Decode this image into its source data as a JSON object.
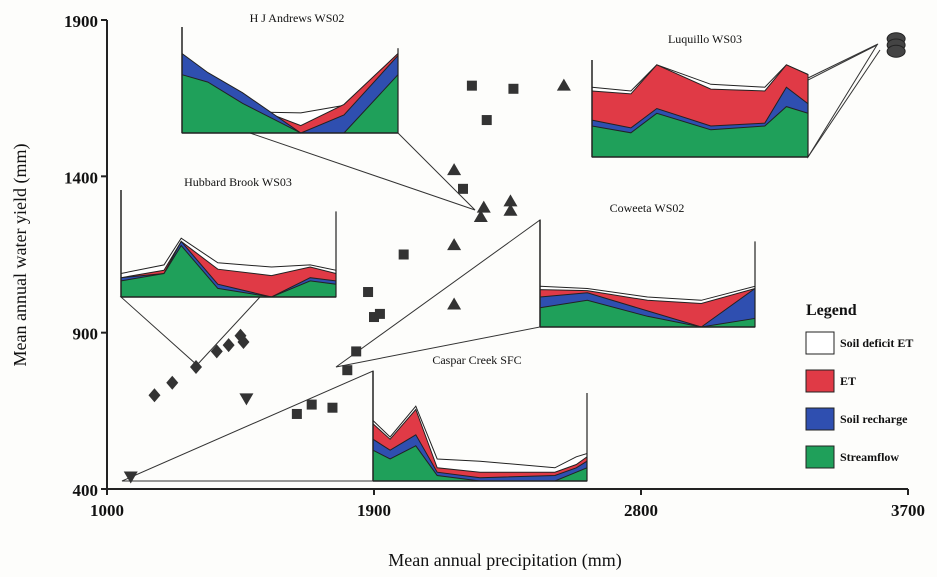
{
  "chart_data": {
    "type": "scatter",
    "xlabel": "Mean annual precipitation (mm)",
    "ylabel": "Mean annual water yield (mm)",
    "xlim": [
      1000,
      3700
    ],
    "ylim": [
      400,
      1900
    ],
    "xticks": [
      1000,
      1900,
      2800,
      3700
    ],
    "yticks": [
      400,
      900,
      1400,
      1900
    ],
    "grid": false,
    "series": [
      {
        "marker": "diamond",
        "color": "#333333",
        "points": [
          [
            1160,
            700
          ],
          [
            1220,
            740
          ],
          [
            1300,
            790
          ],
          [
            1370,
            840
          ],
          [
            1410,
            860
          ],
          [
            1450,
            890
          ],
          [
            1460,
            870
          ]
        ]
      },
      {
        "marker": "triangle-down",
        "color": "#333333",
        "points": [
          [
            1080,
            440
          ],
          [
            1470,
            690
          ]
        ]
      },
      {
        "marker": "square",
        "color": "#333333",
        "points": [
          [
            1640,
            640
          ],
          [
            1690,
            670
          ],
          [
            1760,
            660
          ],
          [
            1810,
            780
          ],
          [
            1840,
            840
          ],
          [
            1880,
            1030
          ],
          [
            1900,
            950
          ],
          [
            1920,
            960
          ],
          [
            2000,
            1150
          ],
          [
            2200,
            1360
          ],
          [
            2230,
            1690
          ],
          [
            2280,
            1580
          ],
          [
            2370,
            1680
          ]
        ]
      },
      {
        "marker": "triangle-up",
        "color": "#333333",
        "points": [
          [
            2170,
            1420
          ],
          [
            2170,
            1180
          ],
          [
            2170,
            990
          ],
          [
            2260,
            1270
          ],
          [
            2270,
            1300
          ],
          [
            2360,
            1320
          ],
          [
            2360,
            1290
          ],
          [
            2540,
            1690
          ]
        ]
      },
      {
        "marker": "circle",
        "color": "#444444",
        "points": [
          [
            3660,
            1840
          ],
          [
            3660,
            1820
          ],
          [
            3660,
            1800
          ]
        ]
      }
    ],
    "insets": [
      {
        "title": "H J Andrews WS02",
        "anchor": [
          2230,
          1310
        ]
      },
      {
        "title": "Luquillo WS03",
        "anchor": [
          3660,
          1820
        ]
      },
      {
        "title": "Hubbard Brook WS03",
        "anchor": [
          1300,
          790
        ]
      },
      {
        "title": "Coweeta WS02",
        "anchor": [
          1810,
          780
        ]
      },
      {
        "title": "Caspar Creek SFC",
        "anchor": [
          1080,
          440
        ]
      }
    ],
    "legend": {
      "title": "Legend",
      "position": "right",
      "entries": [
        {
          "label": "Soil deficit ET",
          "color": "#ffffff"
        },
        {
          "label": "ET",
          "color": "#e03a46"
        },
        {
          "label": "Soil recharge",
          "color": "#2f4fb0"
        },
        {
          "label": "Streamflow",
          "color": "#1fa05a"
        }
      ]
    }
  }
}
